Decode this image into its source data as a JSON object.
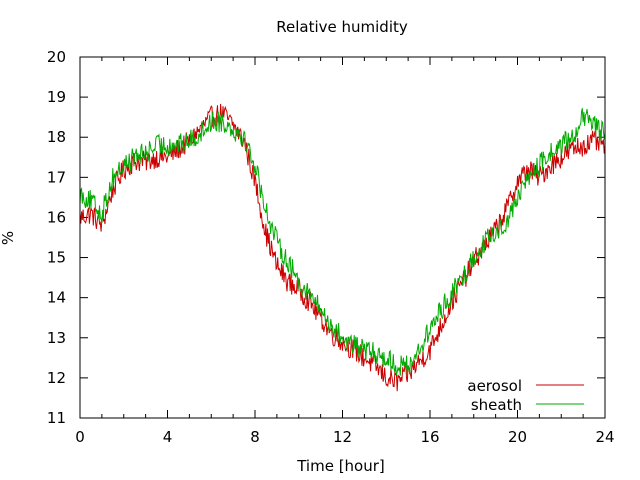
{
  "chart_data": {
    "type": "line",
    "title": "Relative humidity",
    "xlabel": "Time [hour]",
    "ylabel": "%",
    "xlim": [
      0,
      24
    ],
    "ylim": [
      11,
      20
    ],
    "xticks": [
      "0",
      "4",
      "8",
      "12",
      "16",
      "20",
      "24"
    ],
    "yticks": [
      "11",
      "12",
      "13",
      "14",
      "15",
      "16",
      "17",
      "18",
      "19",
      "20"
    ],
    "grid": false,
    "legend_position": "bottom-right",
    "series": [
      {
        "name": "aerosol",
        "color": "#cc0000",
        "x": [
          0,
          0.5,
          1,
          1.5,
          2,
          2.5,
          3,
          3.5,
          4,
          4.5,
          5,
          5.5,
          6,
          6.5,
          7,
          7.5,
          8,
          8.5,
          9,
          9.5,
          10,
          10.5,
          11,
          11.5,
          12,
          12.5,
          13,
          13.5,
          14,
          14.5,
          15,
          15.5,
          16,
          16.5,
          17,
          17.5,
          18,
          18.5,
          19,
          19.5,
          20,
          20.5,
          21,
          21.5,
          22,
          22.5,
          23,
          23.5,
          24
        ],
        "values": [
          16.0,
          16.1,
          15.8,
          16.7,
          17.2,
          17.4,
          17.4,
          17.5,
          17.5,
          17.7,
          17.9,
          18.2,
          18.5,
          18.6,
          18.3,
          17.9,
          16.9,
          15.6,
          14.8,
          14.4,
          14.2,
          13.9,
          13.5,
          13.1,
          12.9,
          12.7,
          12.5,
          12.3,
          12.0,
          11.9,
          12.1,
          12.4,
          12.7,
          13.3,
          13.9,
          14.4,
          14.9,
          15.3,
          15.7,
          16.2,
          16.9,
          17.2,
          17.0,
          17.3,
          17.5,
          17.7,
          17.8,
          17.9,
          17.8
        ]
      },
      {
        "name": "sheath",
        "color": "#00aa00",
        "x": [
          0,
          0.5,
          1,
          1.5,
          2,
          2.5,
          3,
          3.5,
          4,
          4.5,
          5,
          5.5,
          6,
          6.5,
          7,
          7.5,
          8,
          8.5,
          9,
          9.5,
          10,
          10.5,
          11,
          11.5,
          12,
          12.5,
          13,
          13.5,
          14,
          14.5,
          15,
          15.5,
          16,
          16.5,
          17,
          17.5,
          18,
          18.5,
          19,
          19.5,
          20,
          20.5,
          21,
          21.5,
          22,
          22.5,
          23,
          23.5,
          24
        ],
        "values": [
          16.6,
          16.4,
          16.1,
          17.0,
          17.3,
          17.5,
          17.6,
          17.8,
          17.8,
          17.8,
          17.9,
          18.1,
          18.4,
          18.4,
          18.2,
          18.0,
          17.3,
          16.2,
          15.4,
          14.9,
          14.4,
          14.1,
          13.7,
          13.3,
          13.0,
          12.8,
          12.7,
          12.6,
          12.5,
          12.3,
          12.3,
          12.7,
          13.2,
          13.7,
          14.1,
          14.5,
          15.0,
          15.4,
          15.6,
          15.9,
          16.5,
          17.0,
          17.3,
          17.6,
          17.8,
          18.0,
          18.5,
          18.3,
          18.1
        ]
      }
    ]
  }
}
